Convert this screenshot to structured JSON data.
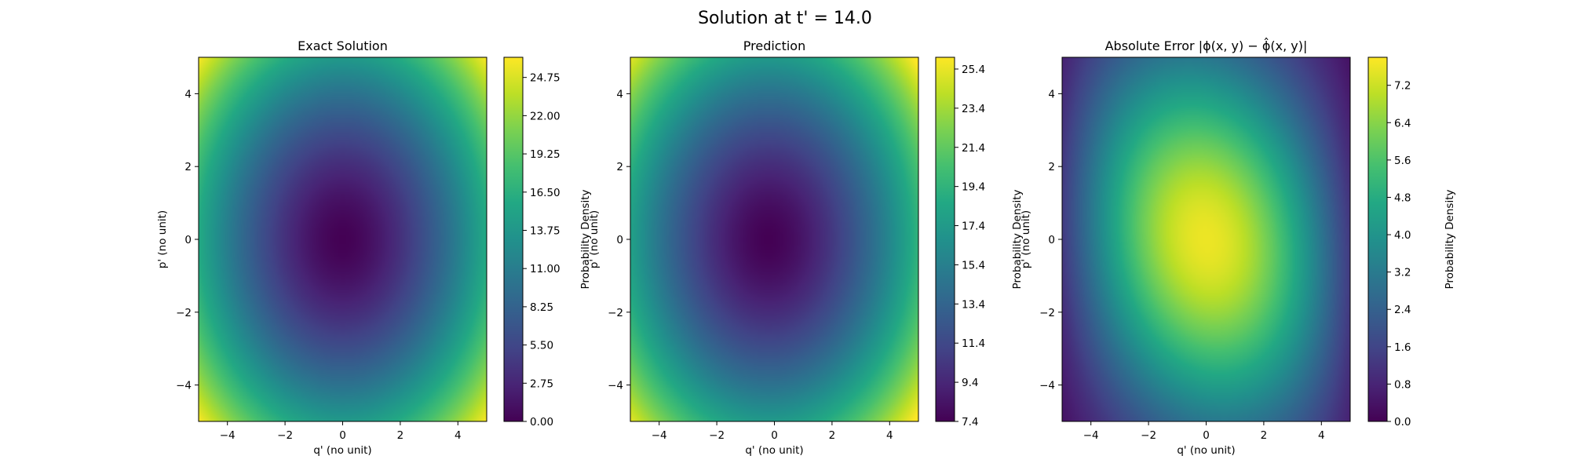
{
  "figure": {
    "title": "Solution at t' = 14.0"
  },
  "chart_data": [
    {
      "type": "heatmap",
      "title": "Exact Solution",
      "xlabel": "q' (no unit)",
      "ylabel": "p' (no unit)",
      "xlim": [
        -5,
        5
      ],
      "ylim": [
        -5,
        5
      ],
      "xticks": [
        -4,
        -2,
        0,
        2,
        4
      ],
      "yticks": [
        -4,
        -2,
        0,
        2,
        4
      ],
      "xtick_labels": [
        "−4",
        "−2",
        "0",
        "2",
        "4"
      ],
      "ytick_labels": [
        "−4",
        "−2",
        "0",
        "2",
        "4"
      ],
      "colormap": "viridis",
      "colorbar": {
        "label": "Probability Density",
        "range": [
          0,
          26.2
        ],
        "ticks": [
          0,
          2.75,
          5.5,
          8.25,
          11,
          13.75,
          16.5,
          19.25,
          22,
          24.75
        ],
        "tick_labels": [
          "0.00",
          "2.75",
          "5.50",
          "8.25",
          "11.00",
          "13.75",
          "16.50",
          "19.25",
          "22.00",
          "24.75"
        ]
      },
      "field": {
        "kind": "bowl",
        "center": [
          0,
          0
        ],
        "value_at_center": 0.0,
        "value_at_corner": 26.2,
        "q_weight": 0.56,
        "p_weight": 0.48
      }
    },
    {
      "type": "heatmap",
      "title": "Prediction",
      "xlabel": "q' (no unit)",
      "ylabel": "p' (no unit)",
      "xlim": [
        -5,
        5
      ],
      "ylim": [
        -5,
        5
      ],
      "xticks": [
        -4,
        -2,
        0,
        2,
        4
      ],
      "yticks": [
        -4,
        -2,
        0,
        2,
        4
      ],
      "xtick_labels": [
        "−4",
        "−2",
        "0",
        "2",
        "4"
      ],
      "ytick_labels": [
        "−4",
        "−2",
        "0",
        "2",
        "4"
      ],
      "colormap": "viridis",
      "colorbar": {
        "label": "Probability Density",
        "range": [
          7.4,
          26.0
        ],
        "ticks": [
          7.4,
          9.4,
          11.4,
          13.4,
          15.4,
          17.4,
          19.4,
          21.4,
          23.4,
          25.4
        ],
        "tick_labels": [
          "7.4",
          "9.4",
          "11.4",
          "13.4",
          "15.4",
          "17.4",
          "19.4",
          "21.4",
          "23.4",
          "25.4"
        ]
      },
      "field": {
        "kind": "bowl",
        "center": [
          -0.2,
          0
        ],
        "value_at_center": 7.4,
        "value_at_corner": 26.0,
        "q_weight": 0.56,
        "p_weight": 0.48
      }
    },
    {
      "type": "heatmap",
      "title": "Absolute Error",
      "title_math": "|ϕ(x, y) − ϕ̂(x, y)|",
      "xlabel": "q' (no unit)",
      "ylabel": "p' (no unit)",
      "xlim": [
        -5,
        5
      ],
      "ylim": [
        -5,
        5
      ],
      "xticks": [
        -4,
        -2,
        0,
        2,
        4
      ],
      "yticks": [
        -4,
        -2,
        0,
        2,
        4
      ],
      "xtick_labels": [
        "−4",
        "−2",
        "0",
        "2",
        "4"
      ],
      "ytick_labels": [
        "−4",
        "−2",
        "0",
        "2",
        "4"
      ],
      "colormap": "viridis",
      "colorbar": {
        "label": "Probability Density",
        "range": [
          0,
          7.8
        ],
        "ticks": [
          0,
          0.8,
          1.6,
          2.4,
          3.2,
          4.0,
          4.8,
          5.6,
          6.4,
          7.2
        ],
        "tick_labels": [
          "0.0",
          "0.8",
          "1.6",
          "2.4",
          "3.2",
          "4.0",
          "4.8",
          "5.6",
          "6.4",
          "7.2"
        ]
      },
      "field": {
        "kind": "hill",
        "center": [
          0,
          0
        ],
        "value_at_center": 7.6,
        "value_at_corner": 0.0
      }
    }
  ]
}
